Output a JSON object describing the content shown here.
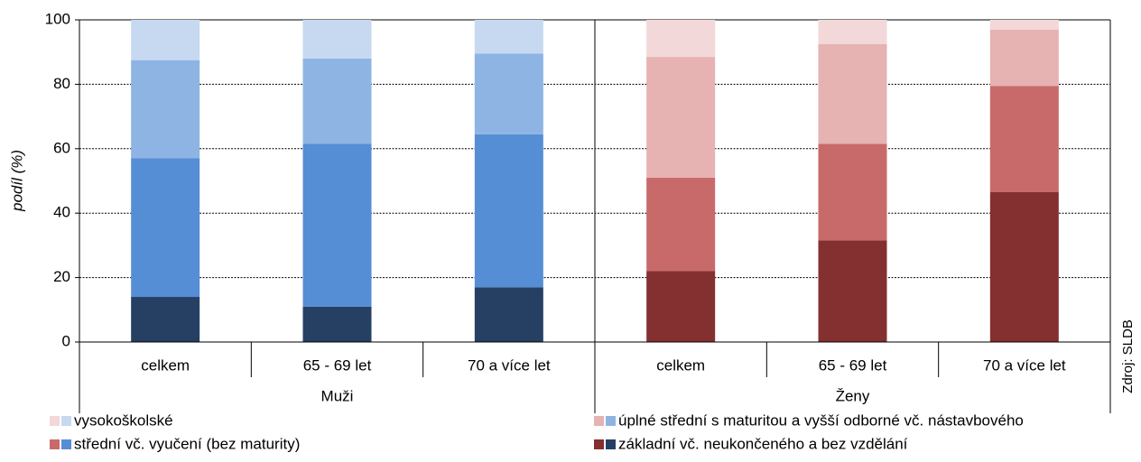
{
  "chart_data": {
    "type": "bar",
    "stacked": true,
    "ylabel": "podíl (%)",
    "source": "Zdroj: SLDB",
    "categories": [
      "celkem",
      "65 - 69 let",
      "70 a více let",
      "celkem",
      "65 - 69 let",
      "70 a více let"
    ],
    "groups": [
      "Muži",
      "Ženy"
    ],
    "series": [
      {
        "name": "základní vč. neukončeného a bez vzdělání",
        "colors": [
          "#264064",
          "#843030"
        ],
        "values": [
          14,
          11,
          17,
          22,
          31.5,
          46.5
        ]
      },
      {
        "name": "střední vč. vyučení (bez maturity)",
        "colors": [
          "#558ed5",
          "#c86a6a"
        ],
        "values": [
          43,
          50.5,
          47.5,
          29,
          30,
          33
        ]
      },
      {
        "name": "úplné střední s maturitou a vyšší odborné vč. nástavbového",
        "colors": [
          "#8eb4e3",
          "#e6b2b2"
        ],
        "values": [
          30.5,
          26.5,
          25,
          37.5,
          31,
          17.5
        ]
      },
      {
        "name": "vysokoškolské",
        "colors": [
          "#c6d9f1",
          "#f2d8d8"
        ],
        "values": [
          12.5,
          12,
          10.5,
          11.5,
          7.5,
          3
        ]
      }
    ],
    "ylim": [
      0,
      100
    ],
    "yticks": [
      0,
      20,
      40,
      60,
      80,
      100
    ],
    "grid": true
  }
}
